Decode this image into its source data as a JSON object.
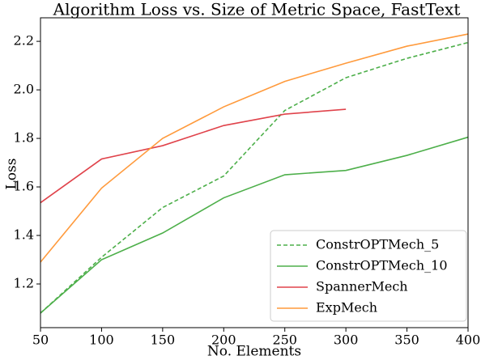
{
  "chart_data": {
    "type": "line",
    "title": "Algorithm Loss vs. Size of Metric Space, FastText",
    "x_label": "No. Elements",
    "y_label": "Loss",
    "x": [
      50,
      100,
      150,
      200,
      250,
      300,
      350,
      400
    ],
    "series": [
      {
        "name": "ConstrOPTMech_5",
        "color": "#4daf4a",
        "linestyle": "dashed",
        "values": [
          1.08,
          1.31,
          1.515,
          1.645,
          1.915,
          2.05,
          2.13,
          2.195
        ]
      },
      {
        "name": "ConstrOPTMech_10",
        "color": "#4daf4a",
        "linestyle": "solid",
        "values": [
          1.08,
          1.3,
          1.41,
          1.555,
          1.65,
          1.668,
          1.73,
          1.805
        ]
      },
      {
        "name": "SpannerMech",
        "color": "#e0434b",
        "linestyle": "solid",
        "values": [
          1.535,
          1.715,
          1.77,
          1.853,
          1.9,
          1.92,
          null,
          null
        ]
      },
      {
        "name": "ExpMech",
        "color": "#ff9a3c",
        "linestyle": "solid",
        "values": [
          1.29,
          1.595,
          1.8,
          1.93,
          2.035,
          2.11,
          2.18,
          2.23
        ]
      }
    ],
    "xlim": [
      50,
      400
    ],
    "xticks": [
      50,
      100,
      150,
      200,
      250,
      300,
      350,
      400
    ],
    "ylim": [
      1.02,
      2.297
    ],
    "yticks": [
      1.2,
      1.4,
      1.6,
      1.8,
      {
        "value": 2,
        "label": "2.0"
      },
      2.2
    ],
    "legend": "lower right"
  }
}
